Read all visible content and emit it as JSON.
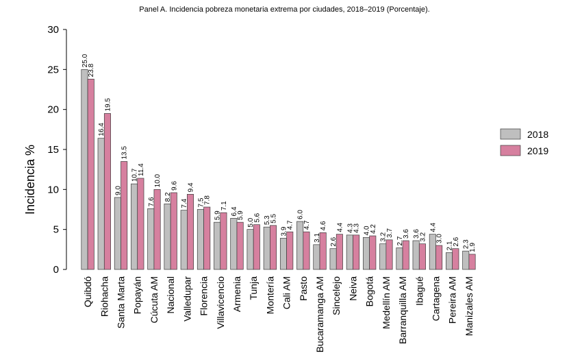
{
  "chart_data": {
    "type": "bar",
    "title": "Panel A. Incidencia pobreza monetaria extrema por ciudades, 2018–2019 (Porcentaje).",
    "ylabel": "Incidencia %",
    "xlabel": "",
    "ylim": [
      0,
      30
    ],
    "yticks": [
      "0",
      "5",
      "10",
      "15",
      "20",
      "25",
      "30"
    ],
    "grid": false,
    "legend_position": "right",
    "categories": [
      "Quibdó",
      "Riohacha",
      "Santa Marta",
      "Popayán",
      "Cúcuta AM",
      "Nacional",
      "Valledupar",
      "Florencia",
      "Villavicencio",
      "Armenia",
      "Tunja",
      "Montería",
      "Cali AM",
      "Pasto",
      "Bucaramanga AM",
      "Sincelejo",
      "Neiva",
      "Bogotá",
      "Medellín AM",
      "Barranquilla AM",
      "Ibagué",
      "Cartagena",
      "Pereira AM",
      "Manizales AM"
    ],
    "series": [
      {
        "name": "2018",
        "color": "#bfbfbf",
        "values": [
          25.0,
          16.4,
          9.0,
          10.7,
          7.6,
          8.2,
          7.4,
          7.5,
          5.9,
          6.4,
          5.0,
          5.3,
          3.9,
          6.0,
          3.1,
          2.6,
          4.3,
          4.0,
          3.2,
          2.7,
          3.6,
          4.4,
          2.1,
          2.3
        ],
        "labels": [
          "25.0",
          "16.4",
          "9.0",
          "10.7",
          "7.6",
          "8.2",
          "7.4",
          "7.5",
          "5.9",
          "6.4",
          "5.0",
          "5.3",
          "3.9",
          "6.0",
          "3.1",
          "2.6",
          "4.3",
          "4.0",
          "3.2",
          "2.7",
          "3.6",
          "4.4",
          "2.1",
          "2.3"
        ]
      },
      {
        "name": "2019",
        "color": "#d6809f",
        "values": [
          23.8,
          19.5,
          13.5,
          11.4,
          10.0,
          9.6,
          9.4,
          7.8,
          7.1,
          5.9,
          5.6,
          5.5,
          4.7,
          4.7,
          4.6,
          4.4,
          4.3,
          4.2,
          3.7,
          3.6,
          3.2,
          3.0,
          2.6,
          1.9
        ],
        "labels": [
          "23.8",
          "19.5",
          "13.5",
          "11.4",
          "10.0",
          "9.6",
          "9.4",
          "7.8",
          "7.1",
          "5.9",
          "5.6",
          "5.5",
          "4.7",
          "4.7",
          "4.6",
          "4.4",
          "4.3",
          "4.2",
          "3.7",
          "3.6",
          "3.2",
          "3.0",
          "2.6",
          "1.9"
        ]
      }
    ]
  }
}
